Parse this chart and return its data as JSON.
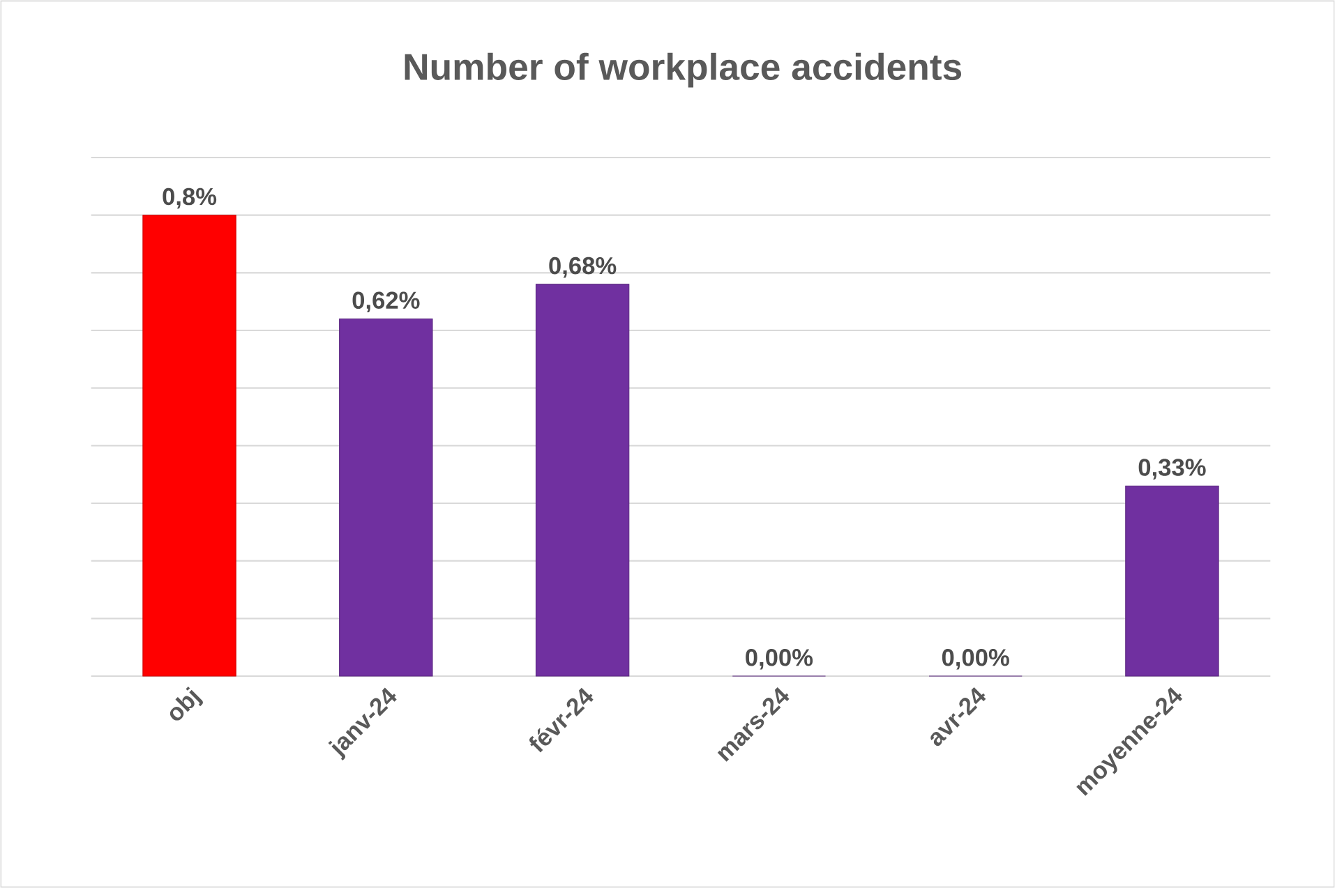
{
  "chart_data": {
    "type": "bar",
    "title": "Number of workplace accidents",
    "categories": [
      "obj",
      "janv-24",
      "févr-24",
      "mars-24",
      "avr-24",
      "moyenne-24"
    ],
    "values": [
      0.8,
      0.62,
      0.68,
      0,
      0,
      0.33
    ],
    "colors": [
      "#ff0000",
      "#7030a0",
      "#7030a0",
      "#7030a0",
      "#7030a0",
      "#7030a0"
    ],
    "value_labels": [
      "0,8%",
      "0,62%",
      "0,68%",
      "0,00%",
      "0,00%",
      "0,33%"
    ],
    "ylim": [
      0,
      0.9
    ],
    "yticks": [
      {
        "value": 0,
        "label": null
      },
      {
        "value": 0.1,
        "label": null
      },
      {
        "value": 0.2,
        "label": null
      },
      {
        "value": 0.3,
        "label": null
      },
      {
        "value": 0.4,
        "label": null
      },
      {
        "value": 0.5,
        "label": null
      },
      {
        "value": 0.6,
        "label": null
      },
      {
        "value": 0.7,
        "label": null
      },
      {
        "value": 0.8,
        "label": null
      },
      {
        "value": 0.9,
        "label": null
      }
    ],
    "tick_labels": "x",
    "grid": "y"
  }
}
